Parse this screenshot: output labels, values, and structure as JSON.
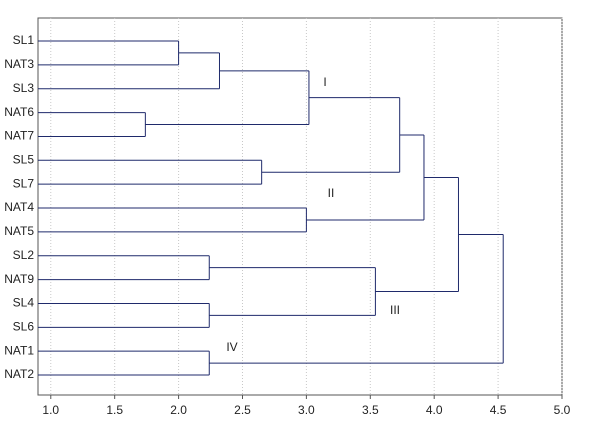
{
  "chart_data": {
    "type": "dendrogram",
    "orientation": "horizontal",
    "xlim": [
      0.9,
      5.0
    ],
    "xticks": [
      {
        "value": 1.0,
        "label": "1.0"
      },
      {
        "value": 1.5,
        "label": "1.5"
      },
      {
        "value": 2.0,
        "label": "2.0"
      },
      {
        "value": 2.5,
        "label": "2.5"
      },
      {
        "value": 3.0,
        "label": "3.0"
      },
      {
        "value": 3.5,
        "label": "3.5"
      },
      {
        "value": 4.0,
        "label": "4.0"
      },
      {
        "value": 4.5,
        "label": "4.5"
      },
      {
        "value": 5.0,
        "label": "5.0"
      }
    ],
    "grid": true,
    "color": "#1f2a6b",
    "tree": {
      "height": 4.54,
      "children": [
        {
          "height": 4.19,
          "children": [
            {
              "height": 3.92,
              "children": [
                {
                  "height": 3.73,
                  "children": [
                    {
                      "height": 3.02,
                      "children": [
                        {
                          "height": 2.32,
                          "children": [
                            {
                              "height": 2.0,
                              "children": [
                                "SL1",
                                "NAT3"
                              ]
                            },
                            "SL3"
                          ]
                        },
                        {
                          "height": 1.74,
                          "children": [
                            "NAT6",
                            "NAT7"
                          ]
                        }
                      ]
                    },
                    {
                      "height": 2.65,
                      "children": [
                        "SL5",
                        "SL7"
                      ]
                    }
                  ]
                },
                {
                  "height": 3.0,
                  "children": [
                    "NAT4",
                    "NAT5"
                  ]
                }
              ]
            },
            {
              "height": 3.54,
              "children": [
                {
                  "height": 2.24,
                  "children": [
                    "SL2",
                    "NAT9"
                  ]
                },
                {
                  "height": 2.24,
                  "children": [
                    "SL4",
                    "SL6"
                  ]
                }
              ]
            }
          ]
        },
        {
          "height": 2.24,
          "children": [
            "NAT1",
            "NAT2"
          ]
        }
      ]
    },
    "annotations": [
      "I",
      "II",
      "III",
      "IV"
    ]
  }
}
